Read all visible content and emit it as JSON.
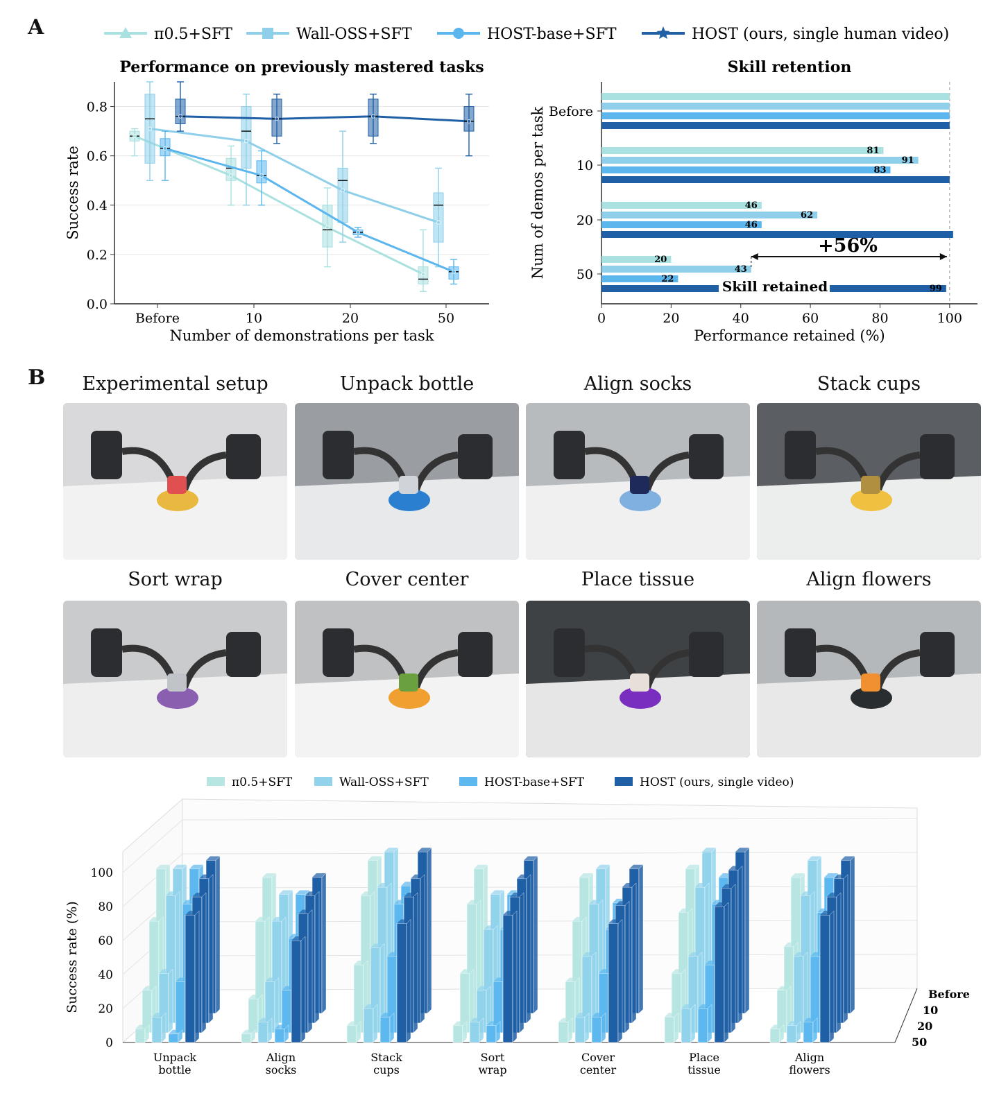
{
  "panels": {
    "a_label": "A",
    "b_label": "B"
  },
  "top_legend": [
    {
      "label": "π0.5+SFT",
      "color": "#a9e0e0",
      "marker": "triangle"
    },
    {
      "label": "Wall-OSS+SFT",
      "color": "#8fcfea",
      "marker": "square"
    },
    {
      "label": "HOST-base+SFT",
      "color": "#5bb6ee",
      "marker": "circle"
    },
    {
      "label": "HOST (ours, single human video)",
      "color": "#1f5fa6",
      "marker": "star"
    }
  ],
  "chart_data": [
    {
      "type": "box-line",
      "title": "Performance on previously mastered tasks",
      "xlabel": "Number of demonstrations per task",
      "ylabel": "Success rate",
      "categories": [
        "Before",
        "10",
        "20",
        "50"
      ],
      "ylim": [
        0,
        0.9
      ],
      "yticks": [
        "0.0",
        "0.2",
        "0.4",
        "0.6",
        "0.8"
      ],
      "grid": true,
      "series": [
        {
          "name": "π0.5+SFT",
          "color": "#a9e0e0",
          "mean": [
            0.68,
            0.52,
            0.31,
            0.12
          ],
          "box": [
            [
              0.66,
              0.68,
              0.7,
              0.6,
              0.71
            ],
            [
              0.5,
              0.55,
              0.59,
              0.4,
              0.64
            ],
            [
              0.23,
              0.3,
              0.4,
              0.15,
              0.47
            ],
            [
              0.08,
              0.1,
              0.15,
              0.05,
              0.3
            ]
          ]
        },
        {
          "name": "Wall-OSS+SFT",
          "color": "#8fcfea",
          "mean": [
            0.71,
            0.66,
            0.46,
            0.33
          ],
          "box": [
            [
              0.57,
              0.75,
              0.85,
              0.5,
              0.9
            ],
            [
              0.55,
              0.7,
              0.8,
              0.4,
              0.85
            ],
            [
              0.33,
              0.5,
              0.55,
              0.25,
              0.7
            ],
            [
              0.25,
              0.4,
              0.45,
              0.15,
              0.55
            ]
          ]
        },
        {
          "name": "HOST-base+SFT",
          "color": "#5bb6ee",
          "mean": [
            0.63,
            0.52,
            0.29,
            0.13
          ],
          "box": [
            [
              0.6,
              0.63,
              0.67,
              0.5,
              0.7
            ],
            [
              0.49,
              0.52,
              0.58,
              0.4,
              0.62
            ],
            [
              0.28,
              0.29,
              0.3,
              0.27,
              0.31
            ],
            [
              0.1,
              0.13,
              0.15,
              0.08,
              0.18
            ]
          ]
        },
        {
          "name": "HOST (ours, single human video)",
          "color": "#1f5fa6",
          "mean": [
            0.76,
            0.75,
            0.76,
            0.74
          ],
          "box": [
            [
              0.73,
              0.76,
              0.83,
              0.7,
              0.9
            ],
            [
              0.68,
              0.75,
              0.83,
              0.65,
              0.85
            ],
            [
              0.68,
              0.76,
              0.83,
              0.65,
              0.85
            ],
            [
              0.7,
              0.74,
              0.8,
              0.6,
              0.85
            ]
          ]
        }
      ]
    },
    {
      "type": "bar",
      "orientation": "horizontal",
      "title": "Skill retention",
      "xlabel": "Performance retained (%)",
      "ylabel": "Num of demos per task",
      "categories": [
        "Before",
        "10",
        "20",
        "50"
      ],
      "xlim": [
        0,
        108
      ],
      "xticks": [
        "0",
        "20",
        "40",
        "60",
        "80",
        "100"
      ],
      "series": [
        {
          "name": "π0.5+SFT",
          "color": "#a9e0e0",
          "values": [
            100,
            81,
            46,
            20
          ],
          "labels": [
            "",
            "81",
            "46",
            "20"
          ]
        },
        {
          "name": "Wall-OSS+SFT",
          "color": "#8fcfea",
          "values": [
            100,
            91,
            62,
            43
          ],
          "labels": [
            "",
            "91",
            "62",
            "43"
          ]
        },
        {
          "name": "HOST-base+SFT",
          "color": "#5bb6ee",
          "values": [
            100,
            83,
            46,
            22
          ],
          "labels": [
            "",
            "83",
            "46",
            "22"
          ]
        },
        {
          "name": "HOST (ours, single human video)",
          "color": "#1f5fa6",
          "values": [
            100,
            100,
            101,
            99
          ],
          "labels": [
            "",
            "",
            "",
            "99"
          ]
        }
      ],
      "annotations": {
        "delta": "+56%",
        "retained": "Skill retained",
        "delta_from": 43,
        "delta_to": 100
      }
    },
    {
      "type": "bar3d",
      "ylabel": "Success rate (%)",
      "ylim": [
        0,
        100
      ],
      "yticks": [
        "0",
        "20",
        "40",
        "60",
        "80",
        "100"
      ],
      "categories": [
        "Unpack bottle",
        "Align socks",
        "Stack cups",
        "Sort wrap",
        "Cover center",
        "Place tissue",
        "Align flowers"
      ],
      "category_lines": [
        [
          "Unpack",
          "bottle"
        ],
        [
          "Align",
          "socks"
        ],
        [
          "Stack",
          "cups"
        ],
        [
          "Sort",
          "wrap"
        ],
        [
          "Cover",
          "center"
        ],
        [
          "Place",
          "tissue"
        ],
        [
          "Align",
          "flowers"
        ]
      ],
      "depth_labels": [
        "Before",
        "10",
        "20",
        "50"
      ],
      "legend": [
        "π0.5+SFT",
        "Wall-OSS+SFT",
        "HOST-base+SFT",
        "HOST (ours, single video)"
      ],
      "colors": [
        "#b7e6e2",
        "#92d3ec",
        "#5cb8ef",
        "#1f5fa6"
      ],
      "series": [
        {
          "name": "π0.5+SFT",
          "values": [
            [
              85,
              60,
              25,
              8
            ],
            [
              80,
              60,
              20,
              5
            ],
            [
              90,
              75,
              40,
              10
            ],
            [
              85,
              70,
              35,
              10
            ],
            [
              80,
              60,
              30,
              12
            ],
            [
              85,
              65,
              35,
              15
            ],
            [
              80,
              45,
              25,
              8
            ]
          ]
        },
        {
          "name": "Wall-OSS+SFT",
          "values": [
            [
              85,
              75,
              35,
              15
            ],
            [
              70,
              60,
              30,
              12
            ],
            [
              95,
              80,
              50,
              20
            ],
            [
              70,
              55,
              25,
              12
            ],
            [
              85,
              70,
              45,
              15
            ],
            [
              95,
              80,
              45,
              20
            ],
            [
              90,
              75,
              45,
              10
            ]
          ]
        },
        {
          "name": "HOST-base+SFT",
          "values": [
            [
              85,
              70,
              30,
              5
            ],
            [
              70,
              50,
              25,
              8
            ],
            [
              75,
              70,
              45,
              15
            ],
            [
              70,
              55,
              30,
              10
            ],
            [
              65,
              55,
              35,
              15
            ],
            [
              80,
              70,
              40,
              20
            ],
            [
              80,
              65,
              45,
              12
            ]
          ]
        },
        {
          "name": "HOST (ours, single video)",
          "values": [
            [
              90,
              85,
              80,
              75
            ],
            [
              80,
              75,
              70,
              60
            ],
            [
              95,
              85,
              80,
              70
            ],
            [
              90,
              85,
              80,
              75
            ],
            [
              85,
              80,
              75,
              70
            ],
            [
              95,
              90,
              85,
              80
            ],
            [
              90,
              85,
              80,
              75
            ]
          ]
        }
      ]
    }
  ],
  "photos": [
    {
      "title": "Experimental setup",
      "bg": "#d9d9dc",
      "table": "#f2f2f2",
      "accent": "#e8b840",
      "accent2": "#e05050"
    },
    {
      "title": "Unpack bottle",
      "bg": "#9a9ea3",
      "table": "#e8e9ea",
      "accent": "#2a7fd0",
      "accent2": "#d0d4d8"
    },
    {
      "title": "Align socks",
      "bg": "#b8bbbe",
      "table": "#f0f0f0",
      "accent": "#7fb0e0",
      "accent2": "#1d2a5a"
    },
    {
      "title": "Stack cups",
      "bg": "#5b5e62",
      "table": "#eceded",
      "accent": "#f0c040",
      "accent2": "#b09040"
    },
    {
      "title": "Sort wrap",
      "bg": "#c9cbcd",
      "table": "#eeeeee",
      "accent": "#8a5fb0",
      "accent2": "#c0c4c8"
    },
    {
      "title": "Cover center",
      "bg": "#bfc1c3",
      "table": "#f3f3f3",
      "accent": "#f0a030",
      "accent2": "#6aa040"
    },
    {
      "title": "Place tissue",
      "bg": "#3f4245",
      "table": "#e6e6e6",
      "accent": "#7a2ec0",
      "accent2": "#e8e0d8"
    },
    {
      "title": "Align flowers",
      "bg": "#b5b8bb",
      "table": "#e8e8e8",
      "accent": "#2a2d30",
      "accent2": "#f09030"
    }
  ]
}
